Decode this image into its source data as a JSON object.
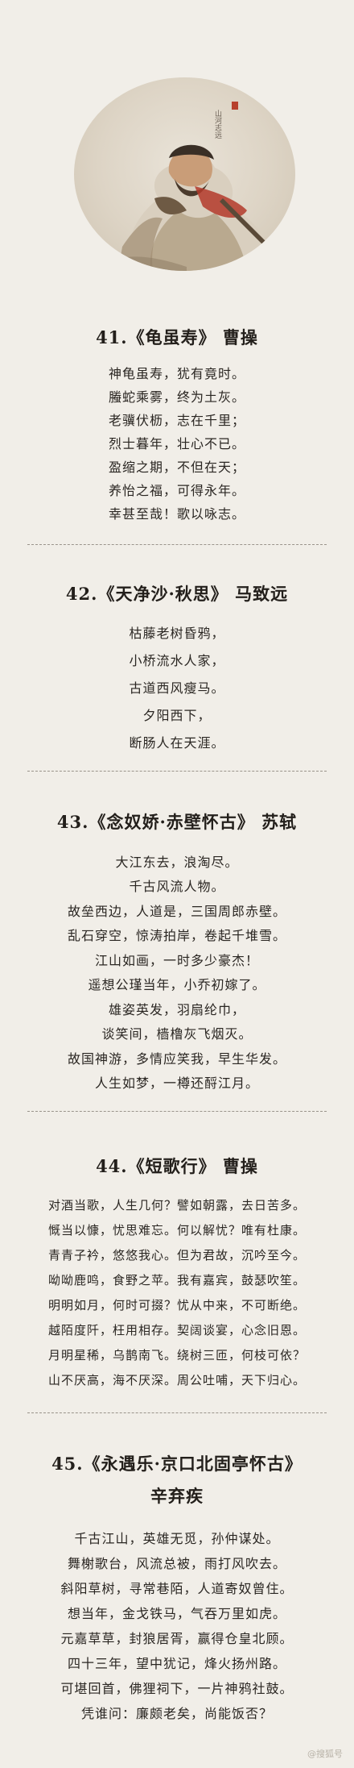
{
  "sections": [
    {
      "title": "41.《龟虽寿》 曹操",
      "lines": [
        "神龟虽寿，犹有竟时。",
        "螣蛇乘雾，终为土灰。",
        "老骥伏枥，志在千里；",
        "烈士暮年，壮心不已。",
        "盈缩之期，不但在天；",
        "养怡之福，可得永年。",
        "幸甚至哉！歌以咏志。"
      ]
    },
    {
      "title": "42.《天净沙·秋思》 马致远",
      "lines": [
        "枯藤老树昏鸦，",
        "小桥流水人家，",
        "古道西风瘦马。",
        "夕阳西下，",
        "断肠人在天涯。"
      ]
    },
    {
      "title": "43.《念奴娇·赤壁怀古》 苏轼",
      "lines": [
        "大江东去，浪淘尽。",
        "千古风流人物。",
        "故垒西边，人道是，三国周郎赤壁。",
        "乱石穿空，惊涛拍岸，卷起千堆雪。",
        "江山如画，一时多少豪杰！",
        "遥想公瑾当年，小乔初嫁了。",
        "雄姿英发，羽扇纶巾，",
        "谈笑间，樯橹灰飞烟灭。",
        "故国神游，多情应笑我，早生华发。",
        "人生如梦，一樽还酹江月。"
      ]
    },
    {
      "title": "44.《短歌行》 曹操",
      "lines": [
        "对酒当歌，人生几何？譬如朝露，去日苦多。",
        "慨当以慷，忧思难忘。何以解忧？唯有杜康。",
        "青青子衿，悠悠我心。但为君故，沉吟至今。",
        "呦呦鹿鸣，食野之苹。我有嘉宾，鼓瑟吹笙。",
        "明明如月，何时可掇？忧从中来，不可断绝。",
        "越陌度阡，枉用相存。契阔谈宴，心念旧恩。",
        "月明星稀，乌鹊南飞。绕树三匝，何枝可依？",
        "山不厌高，海不厌深。周公吐哺，天下归心。"
      ]
    },
    {
      "title": "45.《永遇乐·京口北固亭怀古》",
      "author": "辛弃疾",
      "lines": [
        "千古江山，英雄无觅，孙仲谋处。",
        "舞榭歌台，风流总被，雨打风吹去。",
        "斜阳草树，寻常巷陌，人道寄奴曾住。",
        "想当年，金戈铁马，气吞万里如虎。",
        "元嘉草草，封狼居胥，赢得仓皇北顾。",
        "四十三年，望中犹记，烽火扬州路。",
        "可堪回首，佛狸祠下，一片神鸦社鼓。",
        "凭谁问：廉颇老矣，尚能饭否？"
      ]
    }
  ],
  "watermark": "@搜狐号"
}
